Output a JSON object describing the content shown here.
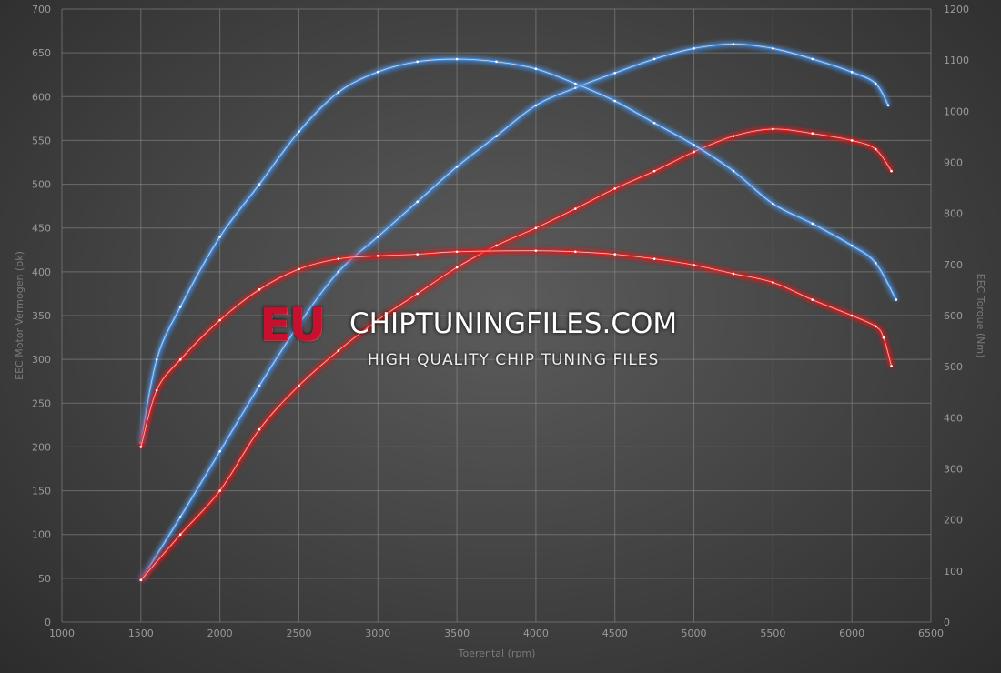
{
  "chart_data": {
    "type": "line",
    "title": "",
    "xlabel": "Toerental (rpm)",
    "ylabel": "EEC Motor Vermogen (pk)",
    "y2label": "EEC Torque (Nm)",
    "xlim": [
      1000,
      6500
    ],
    "ylim": [
      0,
      700
    ],
    "y2lim": [
      0,
      1200
    ],
    "xticks": [
      1000,
      1500,
      2000,
      2500,
      3000,
      3500,
      4000,
      4500,
      5000,
      5500,
      6000,
      6500
    ],
    "yticks": [
      0,
      50,
      100,
      150,
      200,
      250,
      300,
      350,
      400,
      450,
      500,
      550,
      600,
      650,
      700
    ],
    "y2ticks": [
      0,
      100,
      200,
      300,
      400,
      500,
      600,
      700,
      800,
      900,
      1000,
      1100,
      1200
    ],
    "grid": true,
    "series": [
      {
        "axis": "left",
        "color": "#4a90e2",
        "x": [
          1500,
          1750,
          2000,
          2250,
          2500,
          2750,
          3000,
          3250,
          3500,
          3750,
          4000,
          4250,
          4500,
          4750,
          5000,
          5250,
          5500,
          5750,
          6000,
          6150,
          6230
        ],
        "y": [
          48,
          120,
          195,
          270,
          340,
          400,
          440,
          480,
          520,
          555,
          590,
          610,
          627,
          643,
          655,
          660,
          655,
          643,
          628,
          615,
          590
        ]
      },
      {
        "axis": "left",
        "color": "#e02020",
        "x": [
          1500,
          1750,
          2000,
          2250,
          2500,
          2750,
          3000,
          3250,
          3500,
          3750,
          4000,
          4250,
          4500,
          4750,
          5000,
          5250,
          5500,
          5750,
          6000,
          6150,
          6250
        ],
        "y": [
          48,
          100,
          150,
          220,
          270,
          310,
          345,
          375,
          405,
          430,
          450,
          472,
          495,
          515,
          537,
          555,
          563,
          558,
          550,
          540,
          515
        ]
      },
      {
        "axis": "right",
        "color": "#4a90e2",
        "x": [
          1500,
          1600,
          1750,
          2000,
          2250,
          2500,
          2750,
          3000,
          3250,
          3500,
          3750,
          4000,
          4250,
          4500,
          4750,
          5000,
          5250,
          5500,
          5750,
          6000,
          6150,
          6280
        ],
        "y": [
          351,
          514,
          617,
          754,
          857,
          960,
          1037,
          1077,
          1097,
          1102,
          1097,
          1083,
          1054,
          1020,
          977,
          934,
          883,
          819,
          780,
          737,
          703,
          631
        ]
      },
      {
        "axis": "right",
        "color": "#e02020",
        "x": [
          1500,
          1600,
          1750,
          2000,
          2250,
          2500,
          2750,
          3000,
          3250,
          3500,
          4000,
          4250,
          4500,
          4750,
          5000,
          5250,
          5500,
          5750,
          6000,
          6150,
          6200,
          6250
        ],
        "y": [
          343,
          454,
          514,
          591,
          651,
          691,
          711,
          717,
          720,
          725,
          727,
          725,
          720,
          711,
          699,
          682,
          665,
          631,
          600,
          579,
          557,
          501
        ]
      }
    ]
  },
  "watermark": {
    "eu": "EU",
    "site": "CHIPTUNINGFILES.COM",
    "tagline": "HIGH QUALITY CHIP TUNING FILES"
  }
}
